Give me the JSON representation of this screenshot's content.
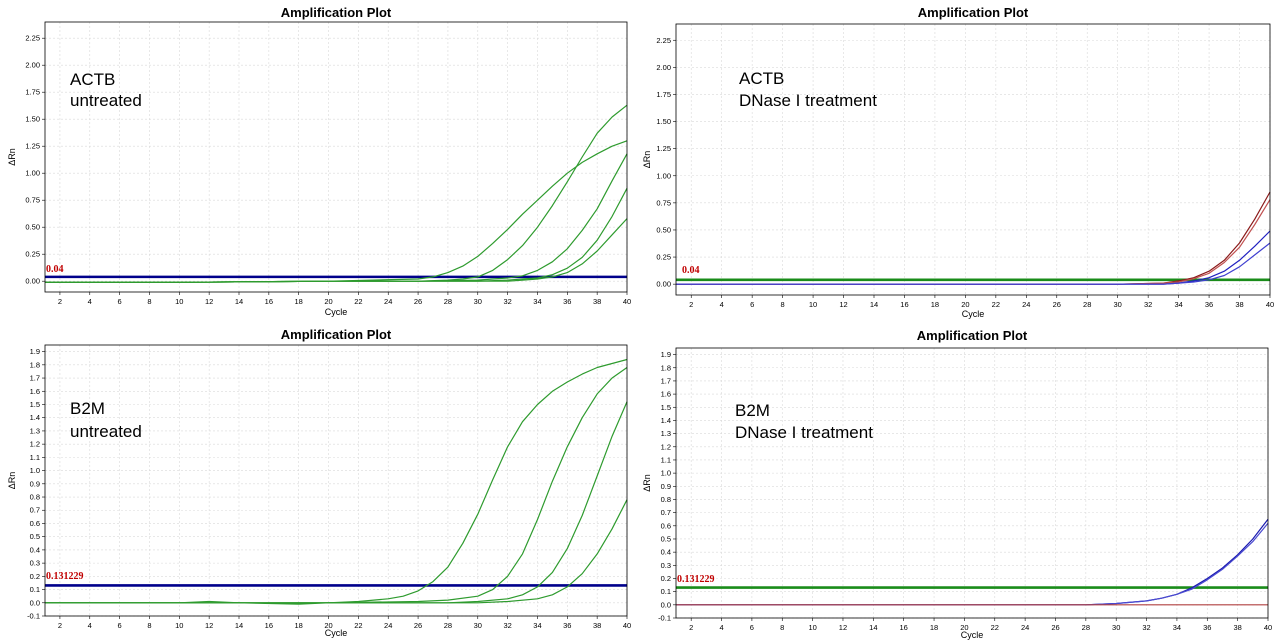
{
  "chart_data": [
    {
      "type": "line",
      "title": "Amplification Plot",
      "xlabel": "Cycle",
      "ylabel": "ΔRn",
      "xlim": [
        1,
        40
      ],
      "ylim": [
        -0.1,
        2.4
      ],
      "xticks": [
        2,
        4,
        6,
        8,
        10,
        12,
        14,
        16,
        18,
        20,
        22,
        24,
        26,
        28,
        30,
        32,
        34,
        36,
        38,
        40
      ],
      "yticks": [
        "0.00",
        "0.25",
        "0.50",
        "0.75",
        "1.00",
        "1.25",
        "1.50",
        "1.75",
        "2.00",
        "2.25"
      ],
      "annotation": [
        "ACTB",
        "untreated"
      ],
      "threshold": {
        "value": 0.04,
        "label": "0.04",
        "color": "#00008b"
      },
      "grid": true,
      "series": [
        {
          "color": "#2e9b2e",
          "x": [
            1,
            10,
            20,
            26,
            27,
            28,
            29,
            30,
            31,
            32,
            33,
            34,
            35,
            36,
            37,
            38,
            39,
            40
          ],
          "y": [
            -0.01,
            -0.01,
            0,
            0.02,
            0.04,
            0.08,
            0.14,
            0.23,
            0.35,
            0.48,
            0.62,
            0.75,
            0.88,
            1.0,
            1.1,
            1.18,
            1.25,
            1.3
          ]
        },
        {
          "color": "#2e9b2e",
          "x": [
            1,
            10,
            20,
            26,
            28,
            29,
            30,
            31,
            32,
            33,
            34,
            35,
            36,
            37,
            38,
            39,
            40
          ],
          "y": [
            -0.01,
            -0.01,
            0,
            0.0,
            0.01,
            0.02,
            0.04,
            0.1,
            0.2,
            0.33,
            0.5,
            0.7,
            0.92,
            1.15,
            1.37,
            1.52,
            1.63
          ]
        },
        {
          "color": "#2e9b2e",
          "x": [
            1,
            10,
            20,
            26,
            30,
            31,
            32,
            33,
            34,
            35,
            36,
            37,
            38,
            39,
            40
          ],
          "y": [
            -0.01,
            -0.01,
            0,
            0.0,
            0.01,
            0.02,
            0.03,
            0.05,
            0.1,
            0.18,
            0.3,
            0.47,
            0.67,
            0.93,
            1.18
          ]
        },
        {
          "color": "#2e9b2e",
          "x": [
            1,
            10,
            20,
            26,
            30,
            32,
            33,
            34,
            35,
            36,
            37,
            38,
            39,
            40
          ],
          "y": [
            -0.01,
            -0.01,
            0,
            0.0,
            0.0,
            0.01,
            0.02,
            0.03,
            0.06,
            0.12,
            0.22,
            0.38,
            0.6,
            0.86
          ]
        },
        {
          "color": "#2e9b2e",
          "x": [
            1,
            10,
            20,
            26,
            30,
            32,
            33,
            34,
            35,
            36,
            37,
            38,
            39,
            40
          ],
          "y": [
            -0.01,
            -0.01,
            0,
            0.0,
            0.0,
            0.0,
            0.01,
            0.02,
            0.04,
            0.08,
            0.16,
            0.28,
            0.43,
            0.58
          ]
        }
      ]
    },
    {
      "type": "line",
      "title": "Amplification Plot",
      "xlabel": "Cycle",
      "ylabel": "ΔRn",
      "xlim": [
        1,
        40
      ],
      "ylim": [
        -0.1,
        2.4
      ],
      "xticks": [
        2,
        4,
        6,
        8,
        10,
        12,
        14,
        16,
        18,
        20,
        22,
        24,
        26,
        28,
        30,
        32,
        34,
        36,
        38,
        40
      ],
      "yticks": [
        "0.00",
        "0.25",
        "0.50",
        "0.75",
        "1.00",
        "1.25",
        "1.50",
        "1.75",
        "2.00",
        "2.25"
      ],
      "annotation": [
        "ACTB",
        "DNase I treatment"
      ],
      "threshold": {
        "value": 0.04,
        "label": "0.04",
        "color": "#1a8c1a"
      },
      "grid": true,
      "series": [
        {
          "color": "#8b1a1a",
          "x": [
            1,
            10,
            20,
            30,
            33,
            34,
            35,
            36,
            37,
            38,
            39,
            40
          ],
          "y": [
            0,
            0,
            0,
            0.0,
            0.01,
            0.03,
            0.06,
            0.12,
            0.22,
            0.38,
            0.6,
            0.85
          ]
        },
        {
          "color": "#c05050",
          "x": [
            1,
            10,
            20,
            30,
            33,
            34,
            35,
            36,
            37,
            38,
            39,
            40
          ],
          "y": [
            0,
            0,
            0,
            0.0,
            0.01,
            0.02,
            0.05,
            0.1,
            0.2,
            0.34,
            0.55,
            0.78
          ]
        },
        {
          "color": "#2020c0",
          "x": [
            1,
            10,
            20,
            30,
            33,
            34,
            35,
            36,
            37,
            38,
            39,
            40
          ],
          "y": [
            0,
            0,
            0,
            0.0,
            0.0,
            0.01,
            0.03,
            0.06,
            0.12,
            0.22,
            0.35,
            0.49
          ]
        },
        {
          "color": "#4040d0",
          "x": [
            1,
            10,
            20,
            30,
            33,
            34,
            35,
            36,
            37,
            38,
            39,
            40
          ],
          "y": [
            0,
            0,
            0,
            0.0,
            0.0,
            0.01,
            0.02,
            0.04,
            0.08,
            0.16,
            0.27,
            0.38
          ]
        }
      ]
    },
    {
      "type": "line",
      "title": "Amplification Plot",
      "xlabel": "Cycle",
      "ylabel": "ΔRn",
      "xlim": [
        1,
        40
      ],
      "ylim": [
        -0.1,
        1.95
      ],
      "xticks": [
        2,
        4,
        6,
        8,
        10,
        12,
        14,
        16,
        18,
        20,
        22,
        24,
        26,
        28,
        30,
        32,
        34,
        36,
        38,
        40
      ],
      "yticks": [
        "-0.1",
        "0.0",
        "0.1",
        "0.2",
        "0.3",
        "0.4",
        "0.5",
        "0.6",
        "0.7",
        "0.8",
        "0.9",
        "1.0",
        "1.1",
        "1.2",
        "1.3",
        "1.4",
        "1.5",
        "1.6",
        "1.7",
        "1.8",
        "1.9"
      ],
      "annotation": [
        "B2M",
        "untreated"
      ],
      "threshold": {
        "value": 0.131229,
        "label": "0.131229",
        "color": "#00008b"
      },
      "grid": true,
      "series": [
        {
          "color": "#2e9b2e",
          "x": [
            1,
            10,
            12,
            14,
            18,
            20,
            22,
            24,
            25,
            26,
            27,
            28,
            29,
            30,
            31,
            32,
            33,
            34,
            35,
            36,
            37,
            38,
            39,
            40
          ],
          "y": [
            0,
            0,
            0.01,
            0.0,
            -0.01,
            0,
            0.01,
            0.03,
            0.05,
            0.09,
            0.16,
            0.27,
            0.45,
            0.67,
            0.93,
            1.18,
            1.37,
            1.5,
            1.6,
            1.67,
            1.73,
            1.78,
            1.81,
            1.84
          ]
        },
        {
          "color": "#2e9b2e",
          "x": [
            1,
            10,
            20,
            26,
            28,
            30,
            31,
            32,
            33,
            34,
            35,
            36,
            37,
            38,
            39,
            40
          ],
          "y": [
            0,
            0,
            0,
            0.01,
            0.02,
            0.05,
            0.1,
            0.2,
            0.37,
            0.63,
            0.92,
            1.18,
            1.4,
            1.58,
            1.7,
            1.78
          ]
        },
        {
          "color": "#2e9b2e",
          "x": [
            1,
            10,
            20,
            28,
            30,
            32,
            33,
            34,
            35,
            36,
            37,
            38,
            39,
            40
          ],
          "y": [
            0,
            0,
            0,
            0.0,
            0.01,
            0.03,
            0.06,
            0.12,
            0.23,
            0.41,
            0.66,
            0.96,
            1.26,
            1.52
          ]
        },
        {
          "color": "#2e9b2e",
          "x": [
            1,
            10,
            20,
            30,
            32,
            34,
            35,
            36,
            37,
            38,
            39,
            40
          ],
          "y": [
            0,
            0,
            0,
            0.0,
            0.01,
            0.03,
            0.06,
            0.12,
            0.22,
            0.37,
            0.56,
            0.78
          ]
        }
      ]
    },
    {
      "type": "line",
      "title": "Amplification Plot",
      "xlabel": "Cycle",
      "ylabel": "ΔRn",
      "xlim": [
        1,
        40
      ],
      "ylim": [
        -0.1,
        1.95
      ],
      "xticks": [
        2,
        4,
        6,
        8,
        10,
        12,
        14,
        16,
        18,
        20,
        22,
        24,
        26,
        28,
        30,
        32,
        34,
        36,
        38,
        40
      ],
      "yticks": [
        "-0.1",
        "0.0",
        "0.1",
        "0.2",
        "0.3",
        "0.4",
        "0.5",
        "0.6",
        "0.7",
        "0.8",
        "0.9",
        "1.0",
        "1.1",
        "1.2",
        "1.3",
        "1.4",
        "1.5",
        "1.6",
        "1.7",
        "1.8",
        "1.9"
      ],
      "annotation": [
        "B2M",
        "DNase I treatment"
      ],
      "threshold": {
        "value": 0.131229,
        "label": "0.131229",
        "color": "#1a8c1a"
      },
      "grid": true,
      "series": [
        {
          "color": "#1a1ab0",
          "x": [
            1,
            10,
            20,
            28,
            30,
            32,
            33,
            34,
            35,
            36,
            37,
            38,
            39,
            40
          ],
          "y": [
            0,
            0,
            0,
            0.0,
            0.01,
            0.03,
            0.05,
            0.08,
            0.13,
            0.2,
            0.28,
            0.38,
            0.5,
            0.65
          ]
        },
        {
          "color": "#4a4ad0",
          "x": [
            1,
            10,
            20,
            28,
            30,
            32,
            33,
            34,
            35,
            36,
            37,
            38,
            39,
            40
          ],
          "y": [
            0,
            0,
            0,
            0.0,
            0.01,
            0.03,
            0.05,
            0.08,
            0.12,
            0.19,
            0.27,
            0.37,
            0.48,
            0.62
          ]
        },
        {
          "color": "#b04040",
          "x": [
            1,
            10,
            20,
            30,
            40
          ],
          "y": [
            0,
            0,
            0,
            0,
            0
          ]
        }
      ]
    }
  ]
}
